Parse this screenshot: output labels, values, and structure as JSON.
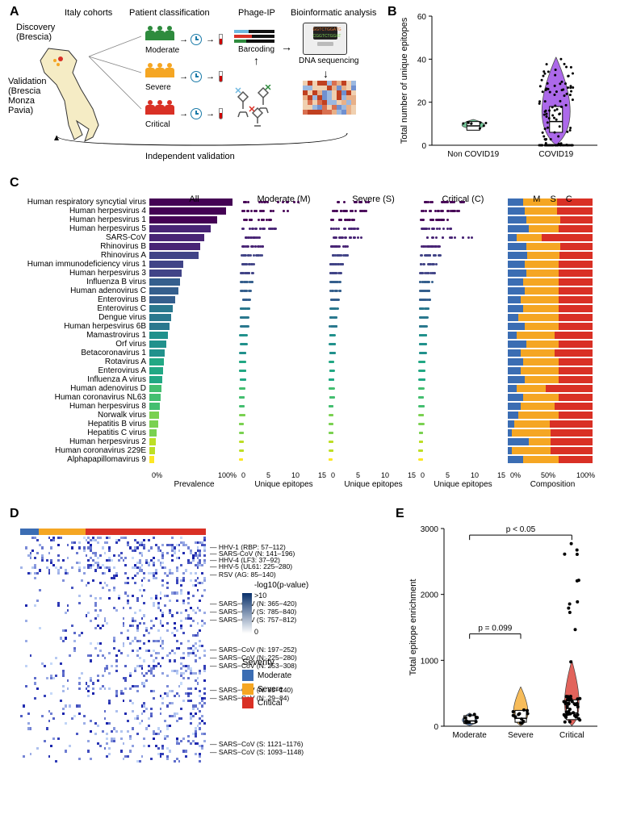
{
  "panelLabels": {
    "A": "A",
    "B": "B",
    "C": "C",
    "D": "D",
    "E": "E"
  },
  "panelA": {
    "headers": [
      "Italy cohorts",
      "Patient classification",
      "Phage-IP",
      "Bioinformatic analysis"
    ],
    "discovery": "Discovery\n(Brescia)",
    "validation": "Validation\n(Brescia\nMonza\nPavia)",
    "severities": [
      {
        "label": "Moderate",
        "color": "#2e8b3d"
      },
      {
        "label": "Severe",
        "color": "#f5a623"
      },
      {
        "label": "Critical",
        "color": "#d93025"
      }
    ],
    "barcoding": "Barcoding",
    "dnaSeq": "DNA sequencing",
    "indepVal": "Independent validation"
  },
  "panelB": {
    "yTitle": "Total number of unique epitopes",
    "yMax": 60,
    "yTicks": [
      0,
      20,
      40,
      60
    ],
    "categories": [
      "Non COVID19",
      "COVID19"
    ],
    "colors": [
      "#3cb371",
      "#8a2be2"
    ],
    "medians": [
      9,
      11
    ],
    "q1": [
      7,
      6
    ],
    "q3": [
      11,
      18
    ],
    "spread": [
      3,
      30
    ],
    "nPoints": [
      8,
      120
    ]
  },
  "panelC": {
    "colHeaders": [
      "All",
      "Moderate (M)",
      "Severe (S)",
      "Critical (C)"
    ],
    "compHeader": [
      "M",
      "S",
      "C"
    ],
    "xLabels": {
      "prevalence": "Prevalence",
      "unique": "Unique epitopes",
      "comp": "Composition"
    },
    "xTicksPrev": [
      "0%",
      "100%"
    ],
    "xTicksUniq": [
      "0",
      "5",
      "10",
      "15"
    ],
    "xTicksComp": [
      "0%",
      "50%",
      "100%"
    ],
    "severityColors": {
      "M": "#3b6db3",
      "S": "#f5a623",
      "C": "#d93025"
    },
    "viridis": [
      "#440154",
      "#482475",
      "#414487",
      "#355f8d",
      "#2a788e",
      "#21918c",
      "#22a884",
      "#44bf70",
      "#7ad151",
      "#bddf26",
      "#fde725"
    ],
    "rows": [
      {
        "name": "Human respiratory syncytial virus",
        "prev": 98,
        "m": 4.5,
        "s": 3.0,
        "c": 3.5,
        "comp": [
          18,
          40,
          42
        ]
      },
      {
        "name": "Human herpesvirus 4",
        "prev": 90,
        "m": 3.8,
        "s": 2.8,
        "c": 3.0,
        "comp": [
          20,
          38,
          42
        ]
      },
      {
        "name": "Human herpesvirus 1",
        "prev": 80,
        "m": 2.5,
        "s": 2.0,
        "c": 2.2,
        "comp": [
          22,
          40,
          38
        ]
      },
      {
        "name": "Human herpesvirus 5",
        "prev": 72,
        "m": 3.0,
        "s": 2.2,
        "c": 2.5,
        "comp": [
          25,
          35,
          40
        ]
      },
      {
        "name": "SARS-CoV",
        "prev": 65,
        "m": 1.5,
        "s": 2.5,
        "c": 4.5,
        "comp": [
          10,
          30,
          60
        ]
      },
      {
        "name": "Rhinovirus B",
        "prev": 60,
        "m": 1.8,
        "s": 1.5,
        "c": 1.8,
        "comp": [
          22,
          40,
          38
        ]
      },
      {
        "name": "Rhinovirus A",
        "prev": 58,
        "m": 1.7,
        "s": 1.4,
        "c": 1.6,
        "comp": [
          23,
          38,
          39
        ]
      },
      {
        "name": "Human immunodeficiency virus 1",
        "prev": 40,
        "m": 1.2,
        "s": 1.0,
        "c": 1.3,
        "comp": [
          20,
          40,
          40
        ]
      },
      {
        "name": "Human herpesvirus 3",
        "prev": 38,
        "m": 1.1,
        "s": 0.9,
        "c": 1.2,
        "comp": [
          22,
          38,
          40
        ]
      },
      {
        "name": "Influenza B virus",
        "prev": 36,
        "m": 1.0,
        "s": 0.8,
        "c": 1.0,
        "comp": [
          18,
          42,
          40
        ]
      },
      {
        "name": "Human adenovirus C",
        "prev": 34,
        "m": 0.9,
        "s": 0.8,
        "c": 0.9,
        "comp": [
          20,
          40,
          40
        ]
      },
      {
        "name": "Enterovirus B",
        "prev": 30,
        "m": 0.8,
        "s": 0.7,
        "c": 0.8,
        "comp": [
          15,
          45,
          40
        ]
      },
      {
        "name": "Enterovirus C",
        "prev": 28,
        "m": 0.7,
        "s": 0.6,
        "c": 0.7,
        "comp": [
          18,
          42,
          40
        ]
      },
      {
        "name": "Dengue virus",
        "prev": 26,
        "m": 0.6,
        "s": 0.5,
        "c": 0.6,
        "comp": [
          12,
          48,
          40
        ]
      },
      {
        "name": "Human herpesvirus 6B",
        "prev": 24,
        "m": 0.6,
        "s": 0.5,
        "c": 0.6,
        "comp": [
          20,
          40,
          40
        ]
      },
      {
        "name": "Mamastrovirus 1",
        "prev": 22,
        "m": 0.5,
        "s": 0.4,
        "c": 0.5,
        "comp": [
          10,
          45,
          45
        ]
      },
      {
        "name": "Orf virus",
        "prev": 20,
        "m": 0.5,
        "s": 0.4,
        "c": 0.5,
        "comp": [
          22,
          38,
          40
        ]
      },
      {
        "name": "Betacoronavirus 1",
        "prev": 18,
        "m": 0.4,
        "s": 0.4,
        "c": 0.5,
        "comp": [
          15,
          40,
          45
        ]
      },
      {
        "name": "Rotavirus A",
        "prev": 17,
        "m": 0.4,
        "s": 0.3,
        "c": 0.4,
        "comp": [
          18,
          42,
          40
        ]
      },
      {
        "name": "Enterovirus A",
        "prev": 16,
        "m": 0.4,
        "s": 0.3,
        "c": 0.4,
        "comp": [
          15,
          45,
          40
        ]
      },
      {
        "name": "Influenza A virus",
        "prev": 15,
        "m": 0.4,
        "s": 0.3,
        "c": 0.4,
        "comp": [
          20,
          40,
          40
        ]
      },
      {
        "name": "Human adenovirus D",
        "prev": 14,
        "m": 0.3,
        "s": 0.3,
        "c": 0.3,
        "comp": [
          10,
          35,
          55
        ]
      },
      {
        "name": "Human coronavirus NL63",
        "prev": 13,
        "m": 0.3,
        "s": 0.3,
        "c": 0.3,
        "comp": [
          18,
          42,
          40
        ]
      },
      {
        "name": "Human herpesvirus 8",
        "prev": 12,
        "m": 0.3,
        "s": 0.2,
        "c": 0.3,
        "comp": [
          15,
          40,
          45
        ]
      },
      {
        "name": "Norwalk virus",
        "prev": 11,
        "m": 0.3,
        "s": 0.2,
        "c": 0.3,
        "comp": [
          12,
          48,
          40
        ]
      },
      {
        "name": "Hepatitis B virus",
        "prev": 10,
        "m": 0.2,
        "s": 0.2,
        "c": 0.3,
        "comp": [
          8,
          42,
          50
        ]
      },
      {
        "name": "Hepatitis C virus",
        "prev": 9,
        "m": 0.2,
        "s": 0.2,
        "c": 0.2,
        "comp": [
          5,
          45,
          50
        ]
      },
      {
        "name": "Human herpesvirus 2",
        "prev": 8,
        "m": 0.2,
        "s": 0.2,
        "c": 0.2,
        "comp": [
          25,
          25,
          50
        ]
      },
      {
        "name": "Human coronavirus 229E",
        "prev": 7,
        "m": 0.2,
        "s": 0.2,
        "c": 0.2,
        "comp": [
          5,
          45,
          50
        ]
      },
      {
        "name": "Alphapapillomavirus 9",
        "prev": 6,
        "m": 0.2,
        "s": 0.1,
        "c": 0.2,
        "comp": [
          18,
          42,
          40
        ]
      }
    ]
  },
  "panelD": {
    "legendTitle": "-log10(p-value)",
    "legendMax": ">10",
    "legendMin": "0",
    "legendColors": [
      "#ffffff",
      "#08306b"
    ],
    "severityLegendTitle": "Severity",
    "severityItems": [
      {
        "label": "Moderate",
        "color": "#3b6db3"
      },
      {
        "label": "Severe",
        "color": "#f5a623"
      },
      {
        "label": "Critical",
        "color": "#d93025"
      }
    ],
    "topbar": [
      {
        "color": "#3b6db3",
        "w": 10
      },
      {
        "color": "#f5a623",
        "w": 25
      },
      {
        "color": "#d93025",
        "w": 65
      }
    ],
    "rowLabels": [
      {
        "t": "HHV-1 (RBP: 57–112)",
        "y": 8
      },
      {
        "t": "SARS-CoV (N: 141–196)",
        "y": 16
      },
      {
        "t": "HHV-4 (LF3: 37–92)",
        "y": 24
      },
      {
        "t": "HHV-5 (UL61: 225–280)",
        "y": 32
      },
      {
        "t": "RSV (AG: 85–140)",
        "y": 42
      },
      {
        "t": "SARS−CoV (N: 365−420)",
        "y": 78
      },
      {
        "t": "SARS−CoV (S: 785−840)",
        "y": 88
      },
      {
        "t": "SARS−CoV (S: 757−812)",
        "y": 98
      },
      {
        "t": "SARS−CoV (N: 197−252)",
        "y": 135
      },
      {
        "t": "SARS−CoV (N: 225−280)",
        "y": 145
      },
      {
        "t": "SARS−CoV (N: 253−308)",
        "y": 155
      },
      {
        "t": "SARS−CoV (N: 85−140)",
        "y": 185
      },
      {
        "t": "SARS−CoV (N: 29−84)",
        "y": 195
      },
      {
        "t": "SARS−CoV (S: 1121−1176)",
        "y": 252
      },
      {
        "t": "SARS−CoV (S: 1093−1148)",
        "y": 262
      }
    ]
  },
  "panelE": {
    "yTitle": "Total epitope enrichment",
    "yMax": 3000,
    "yTicks": [
      0,
      1000,
      2000,
      3000
    ],
    "categories": [
      "Moderate",
      "Severe",
      "Critical"
    ],
    "colors": [
      "#3b6db3",
      "#f5a623",
      "#d93025"
    ],
    "medians": [
      80,
      120,
      200
    ],
    "pvals": [
      {
        "from": 0,
        "to": 1,
        "label": "p = 0.099",
        "y": 1400
      },
      {
        "from": 0,
        "to": 2,
        "label": "p < 0.05",
        "y": 2900
      }
    ]
  }
}
